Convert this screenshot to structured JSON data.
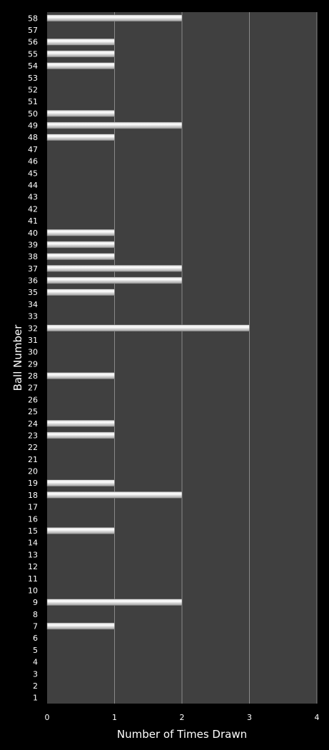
{
  "colors": {
    "background": "#000000",
    "plot_area": "#404040",
    "gridline": "#8a8a8a",
    "bar_light": "#ffffff",
    "bar_dark": "#9a9a9a",
    "text": "#ffffff"
  },
  "chart_data": {
    "type": "bar",
    "orientation": "horizontal",
    "xlabel": "Number of Times Drawn",
    "ylabel": "Ball Number",
    "xlim": [
      0,
      4
    ],
    "x_ticks": [
      0,
      1,
      2,
      3,
      4
    ],
    "grid": "vertical",
    "legend": "none",
    "categories": [
      "1",
      "2",
      "3",
      "4",
      "5",
      "6",
      "7",
      "8",
      "9",
      "10",
      "11",
      "12",
      "13",
      "14",
      "15",
      "16",
      "17",
      "18",
      "19",
      "20",
      "21",
      "22",
      "23",
      "24",
      "25",
      "26",
      "27",
      "28",
      "29",
      "30",
      "31",
      "32",
      "33",
      "34",
      "35",
      "36",
      "37",
      "38",
      "39",
      "40",
      "41",
      "42",
      "43",
      "44",
      "45",
      "46",
      "47",
      "48",
      "49",
      "50",
      "51",
      "52",
      "53",
      "54",
      "55",
      "56",
      "57",
      "58"
    ],
    "values": [
      0,
      0,
      0,
      0,
      0,
      0,
      1,
      0,
      2,
      0,
      0,
      0,
      0,
      0,
      1,
      0,
      0,
      2,
      1,
      0,
      0,
      0,
      1,
      1,
      0,
      0,
      0,
      1,
      0,
      0,
      0,
      3,
      0,
      0,
      1,
      2,
      2,
      1,
      1,
      1,
      0,
      0,
      0,
      0,
      0,
      0,
      0,
      1,
      2,
      1,
      0,
      0,
      0,
      1,
      1,
      1,
      0,
      2
    ]
  }
}
